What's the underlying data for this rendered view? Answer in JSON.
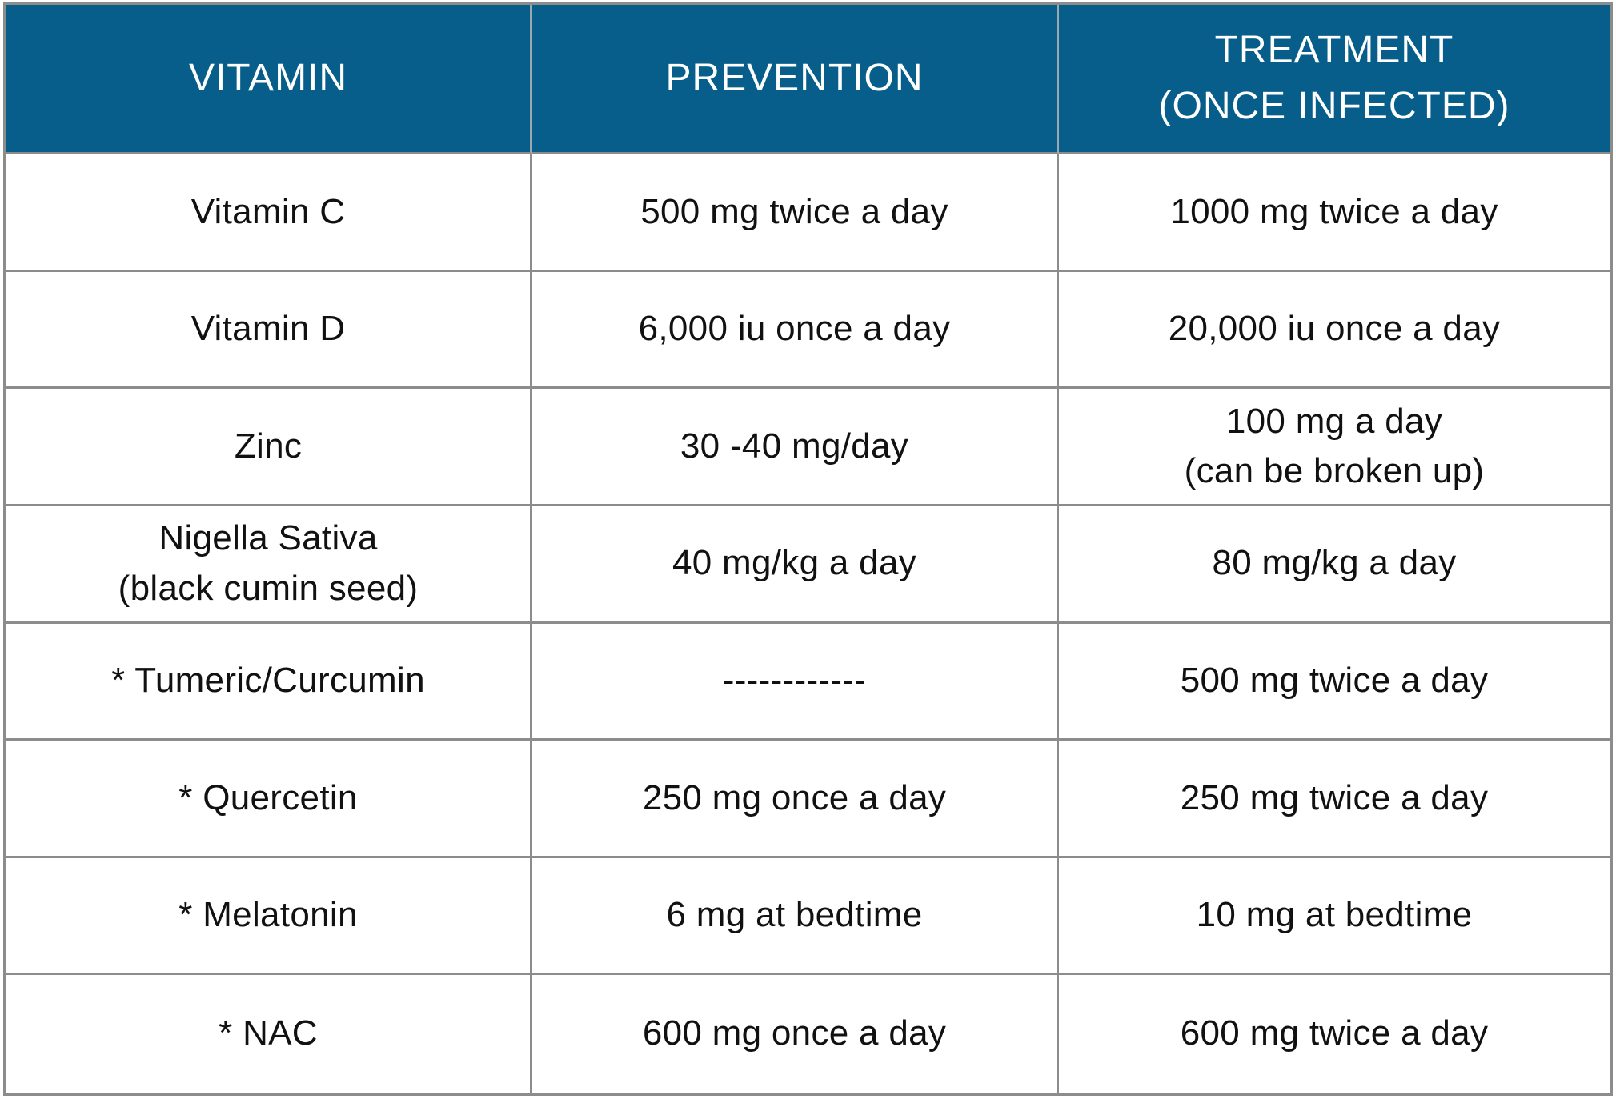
{
  "header": {
    "col1": "VITAMIN",
    "col2": "PREVENTION",
    "col3_line1": "TREATMENT",
    "col3_line2": "(ONCE INFECTED)"
  },
  "rows": [
    {
      "vitamin": [
        "Vitamin C"
      ],
      "prevention": [
        "500 mg twice a day"
      ],
      "treatment": [
        "1000 mg twice a day"
      ]
    },
    {
      "vitamin": [
        "Vitamin D"
      ],
      "prevention": [
        "6,000 iu once a day"
      ],
      "treatment": [
        "20,000 iu once a day"
      ]
    },
    {
      "vitamin": [
        "Zinc"
      ],
      "prevention": [
        "30 -40 mg/day"
      ],
      "treatment": [
        "100 mg a day",
        "(can be broken up)"
      ]
    },
    {
      "vitamin": [
        "Nigella Sativa",
        "(black cumin seed)"
      ],
      "prevention": [
        "40 mg/kg a day"
      ],
      "treatment": [
        "80 mg/kg a day"
      ]
    },
    {
      "vitamin": [
        "* Tumeric/Curcumin"
      ],
      "prevention": [
        "------------"
      ],
      "treatment": [
        "500 mg twice a day"
      ]
    },
    {
      "vitamin": [
        "* Quercetin"
      ],
      "prevention": [
        "250 mg once a day"
      ],
      "treatment": [
        "250  mg twice a day"
      ]
    },
    {
      "vitamin": [
        "* Melatonin"
      ],
      "prevention": [
        "6 mg at bedtime"
      ],
      "treatment": [
        "10 mg at bedtime"
      ]
    },
    {
      "vitamin": [
        "* NAC"
      ],
      "prevention": [
        "600 mg once a day"
      ],
      "treatment": [
        "600 mg twice a day"
      ]
    }
  ],
  "colors": {
    "header_bg": "#075e8a",
    "header_text": "#ffffff",
    "grid_line": "#8c8c8c",
    "body_text": "#111111"
  }
}
